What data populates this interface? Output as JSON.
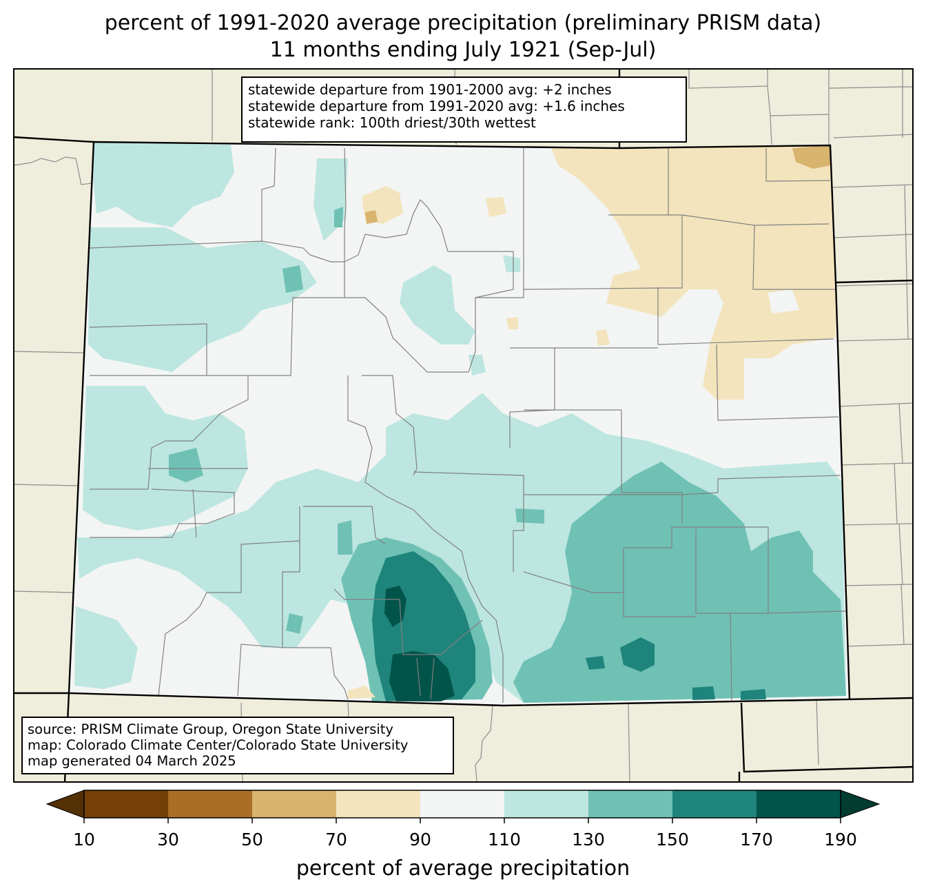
{
  "title_line1": "percent of 1991-2020 average precipitation (preliminary PRISM data)",
  "title_line2": "11 months ending July 1921 (Sep-Jul)",
  "stats": {
    "line1": "statewide departure from 1901-2000 avg: +2 inches",
    "line2": "statewide departure from 1991-2020 avg: +1.6 inches",
    "line3": "statewide rank: 100th driest/30th wettest"
  },
  "credits": {
    "line1": "source: PRISM Climate Group, Oregon State University",
    "line2": "map: Colorado Climate Center/Colorado State University",
    "line3": "map generated 04 March 2025"
  },
  "colorbar": {
    "label": "percent of average precipitation",
    "ticks": [
      "10",
      "30",
      "50",
      "70",
      "90",
      "110",
      "130",
      "150",
      "170",
      "190"
    ],
    "colors": {
      "under": "#543005",
      "10-30": "#744008",
      "30-50": "#a96f25",
      "50-70": "#d8b46f",
      "70-90": "#f3e4bd",
      "90-110": "#f3f5f4",
      "110-130": "#bde6e0",
      "130-150": "#6fc1b4",
      "150-170": "#1f847b",
      "170-190": "#01544a",
      "over": "#003c30"
    },
    "extend": "both"
  },
  "map": {
    "region": "Colorado",
    "land_color": "#efeddb",
    "base_category": "90-110"
  }
}
